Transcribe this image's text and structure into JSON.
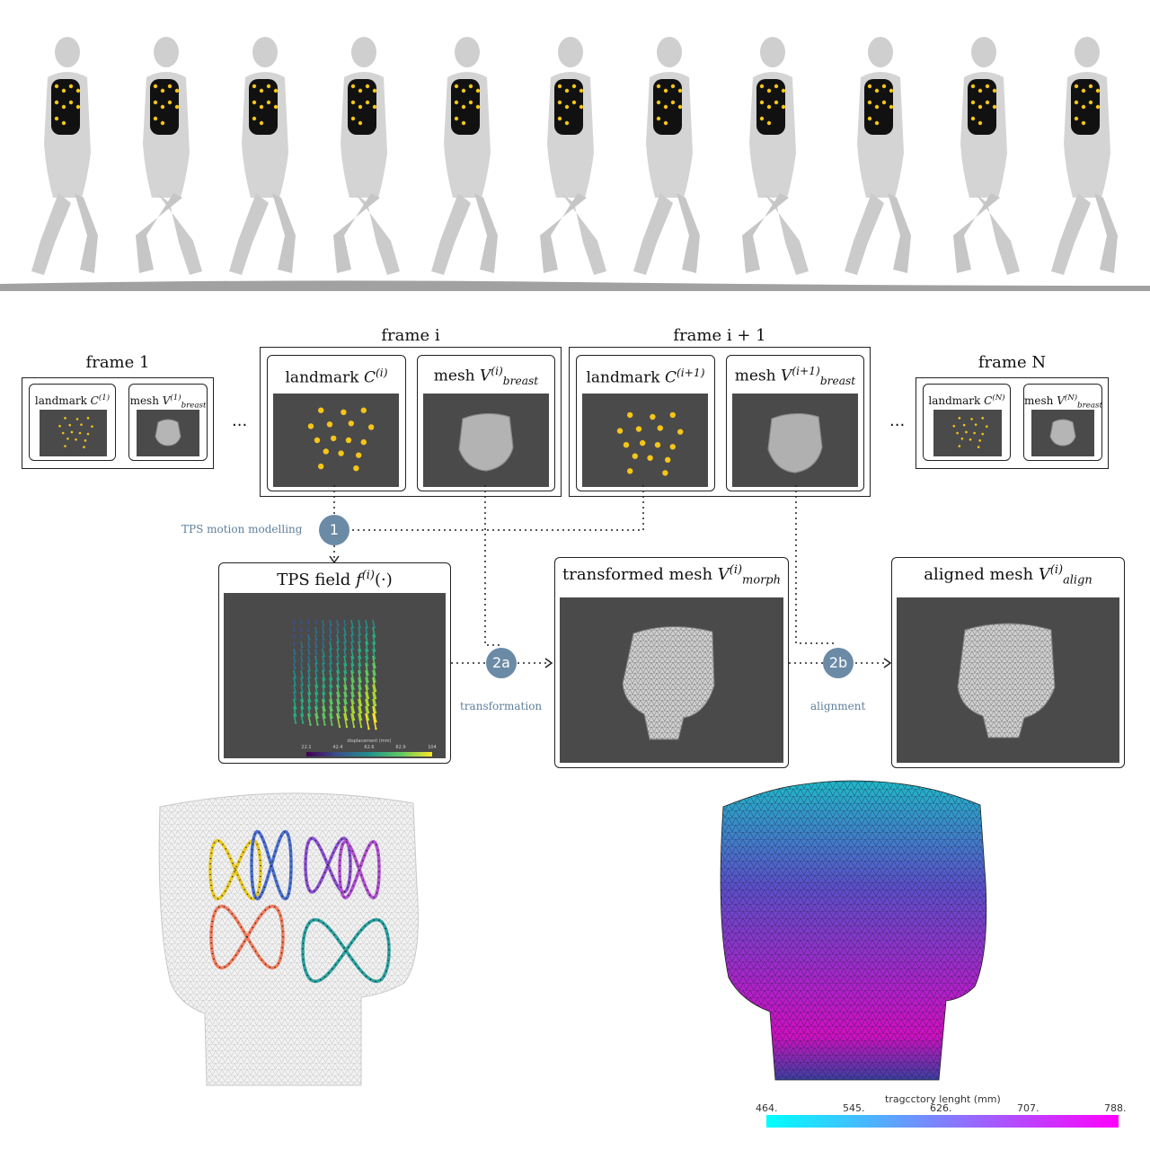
{
  "frames": {
    "first": {
      "title": "frame 1",
      "landmark": {
        "prefix": "landmark ",
        "symbol": "C",
        "sup": "(1)"
      },
      "mesh": {
        "prefix": "mesh ",
        "symbol": "V",
        "sup": "(1)",
        "sub": "breast"
      }
    },
    "i": {
      "title": "frame i",
      "landmark": {
        "prefix": "landmark ",
        "symbol": "C",
        "sup": "(i)"
      },
      "mesh": {
        "prefix": "mesh ",
        "symbol": "V",
        "sup": "(i)",
        "sub": "breast"
      }
    },
    "next": {
      "title": "frame i + 1",
      "landmark": {
        "prefix": "landmark ",
        "symbol": "C",
        "sup": "(i+1)"
      },
      "mesh": {
        "prefix": "mesh ",
        "symbol": "V",
        "sup": "(i+1)",
        "sub": "breast"
      }
    },
    "last": {
      "title": "frame N",
      "landmark": {
        "prefix": "landmark ",
        "symbol": "C",
        "sup": "(N)"
      },
      "mesh": {
        "prefix": "mesh ",
        "symbol": "V",
        "sup": "(N)",
        "sub": "breast"
      }
    }
  },
  "ellipsis": "...",
  "steps": [
    {
      "id": "1",
      "label": "TPS motion modelling"
    },
    {
      "id": "2a",
      "label": "transformation"
    },
    {
      "id": "2b",
      "label": "alignment"
    }
  ],
  "outputs": {
    "tps": {
      "prefix": "TPS field ",
      "symbol": "f",
      "sup": "(i)",
      "suffix": "(·)",
      "colorbar_title": "displacement (mm)",
      "colorbar_ticks": [
        "22.1",
        "42.4",
        "62.6",
        "82.9",
        "104"
      ]
    },
    "morph": {
      "prefix": "transformed mesh ",
      "symbol": "V",
      "sup": "(i)",
      "sub": "morph"
    },
    "align": {
      "prefix": "aligned mesh ",
      "symbol": "V",
      "sup": "(i)",
      "sub": "align"
    }
  },
  "trajectory_colorbar": {
    "title": "tragcctory lenght (mm)",
    "ticks": [
      "464.",
      "545.",
      "626.",
      "707.",
      "788."
    ],
    "colors": [
      "#00ffff",
      "#ff00ff"
    ]
  },
  "colors": {
    "landmark": "#f5c518",
    "step_circle": "#6b8aa5",
    "panel_bg": "#4a4a4a",
    "trajectories": [
      "#e8c820",
      "#4a6fd0",
      "#f07a5a",
      "#8a4fd0",
      "#b04fd0",
      "#2aa0a0"
    ]
  }
}
